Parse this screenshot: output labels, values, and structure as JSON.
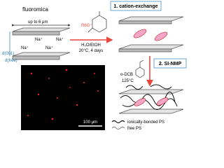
{
  "mica": {
    "label": "fluoromica",
    "width": "up to 6 μm",
    "ions": [
      "Na⁺",
      "Na⁺",
      "Na⁺",
      "Na⁺"
    ],
    "d001": "d(001)",
    "dfree": "d(free)"
  },
  "step1": {
    "title": "1. cation-exchange",
    "reagent": "R6G⁺",
    "conditions": [
      "H₂O/EtOH",
      "20°C, 4 days"
    ]
  },
  "step2": {
    "title": "2. SI-NMP",
    "conditions": [
      "o-DCB",
      "125°C"
    ]
  },
  "micrograph": {
    "scale_bar": "100 μm"
  },
  "legend": [
    "ionically-bonded PS",
    "free PS"
  ]
}
